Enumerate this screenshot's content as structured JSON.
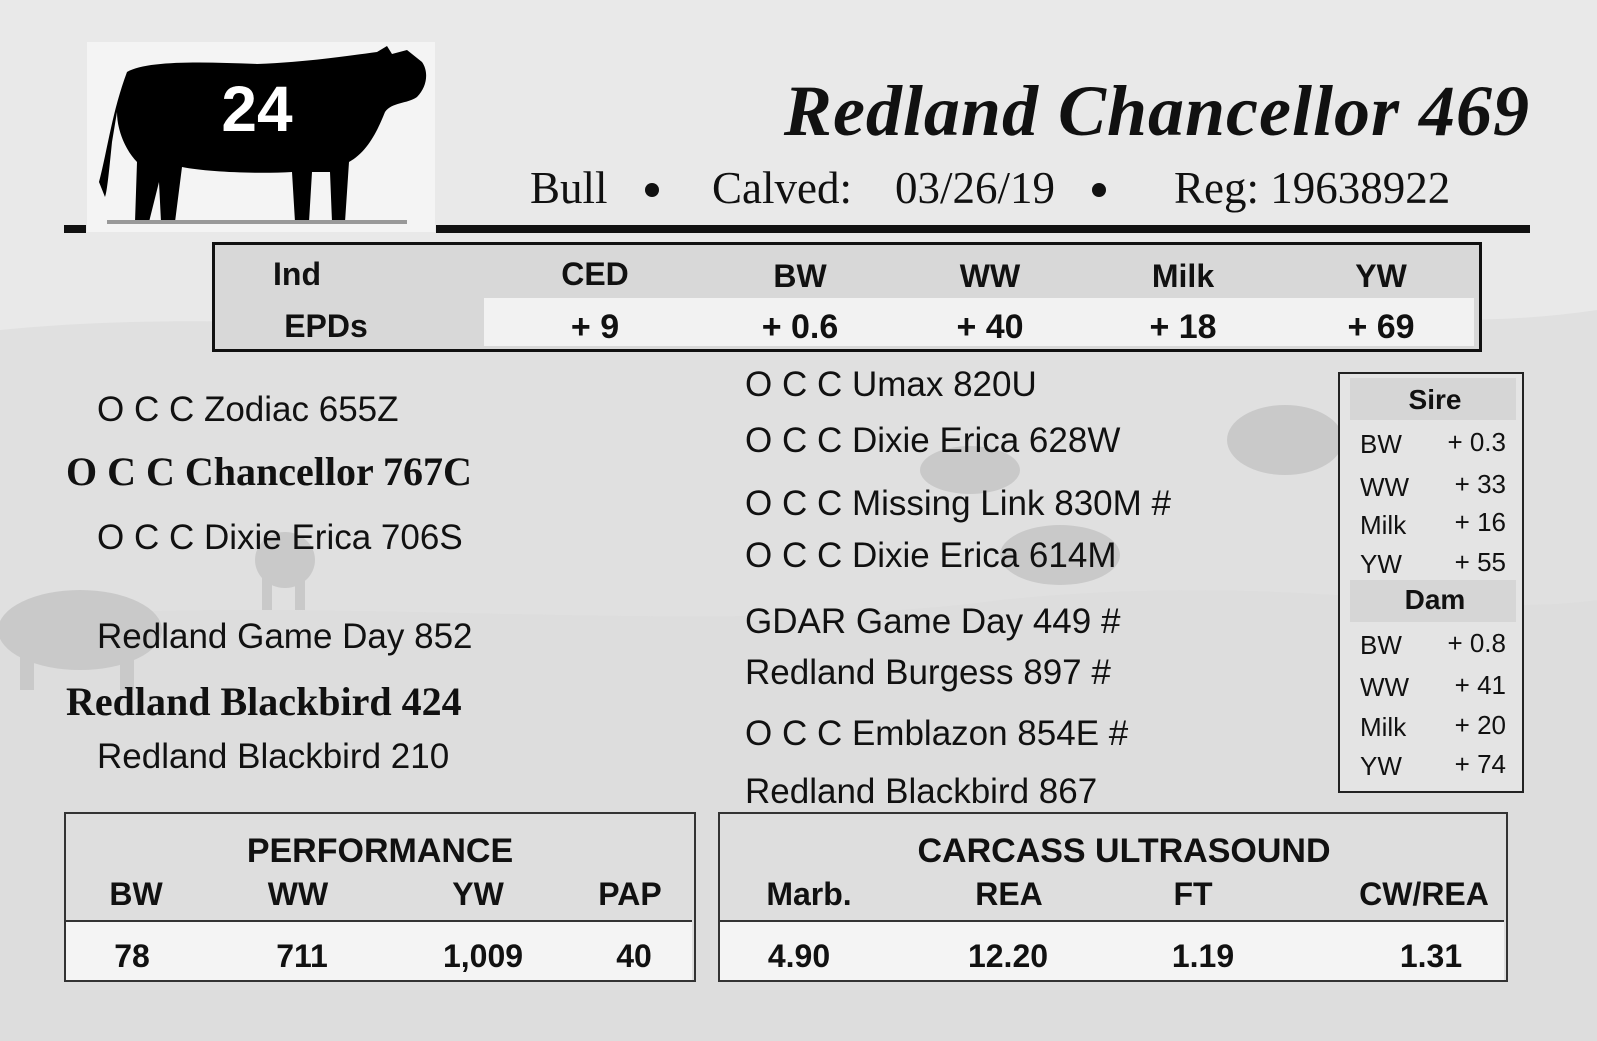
{
  "lot_number": "24",
  "animal": {
    "name": "Redland Chancellor 469",
    "sex": "Bull",
    "calved_label": "Calved:",
    "calved_date": "03/26/19",
    "reg": "Reg: 19638922"
  },
  "epd_table": {
    "row_label_top": "Ind",
    "row_label_bottom": "EPDs",
    "columns": [
      {
        "label": "CED",
        "value": "+ 9"
      },
      {
        "label": "BW",
        "value": "+ 0.6"
      },
      {
        "label": "WW",
        "value": "+ 40"
      },
      {
        "label": "Milk",
        "value": "+ 18"
      },
      {
        "label": "YW",
        "value": "+ 69"
      }
    ]
  },
  "pedigree": {
    "sire_sire": "O C C Zodiac 655Z",
    "sire": "O C C Chancellor 767C",
    "sire_dam": "O C C Dixie Erica 706S",
    "dam_sire": "Redland Game Day 852",
    "dam": "Redland Blackbird 424",
    "dam_dam": "Redland Blackbird 210",
    "ancestors": [
      "O C C Umax 820U",
      "O C C Dixie Erica 628W",
      "O C C Missing Link 830M #",
      "O C C Dixie Erica 614M",
      "GDAR Game Day 449 #",
      "Redland Burgess 897 #",
      "O C C Emblazon 854E #",
      "Redland Blackbird 867"
    ]
  },
  "parent_epds": {
    "sire_title": "Sire",
    "sire": [
      {
        "label": "BW",
        "value": "+ 0.3"
      },
      {
        "label": "WW",
        "value": "+ 33"
      },
      {
        "label": "Milk",
        "value": "+ 16"
      },
      {
        "label": "YW",
        "value": "+ 55"
      }
    ],
    "dam_title": "Dam",
    "dam": [
      {
        "label": "BW",
        "value": "+ 0.8"
      },
      {
        "label": "WW",
        "value": "+ 41"
      },
      {
        "label": "Milk",
        "value": "+ 20"
      },
      {
        "label": "YW",
        "value": "+ 74"
      }
    ]
  },
  "performance": {
    "title": "PERFORMANCE",
    "headers": [
      "BW",
      "WW",
      "YW",
      "PAP"
    ],
    "values": [
      "78",
      "711",
      "1,009",
      "40"
    ]
  },
  "carcass": {
    "title": "CARCASS ULTRASOUND",
    "headers": [
      "Marb.",
      "REA",
      "FT",
      "CW/REA"
    ],
    "values": [
      "4.90",
      "12.20",
      "1.19",
      "1.31"
    ]
  },
  "icons": [
    "bull-silhouette-icon"
  ]
}
